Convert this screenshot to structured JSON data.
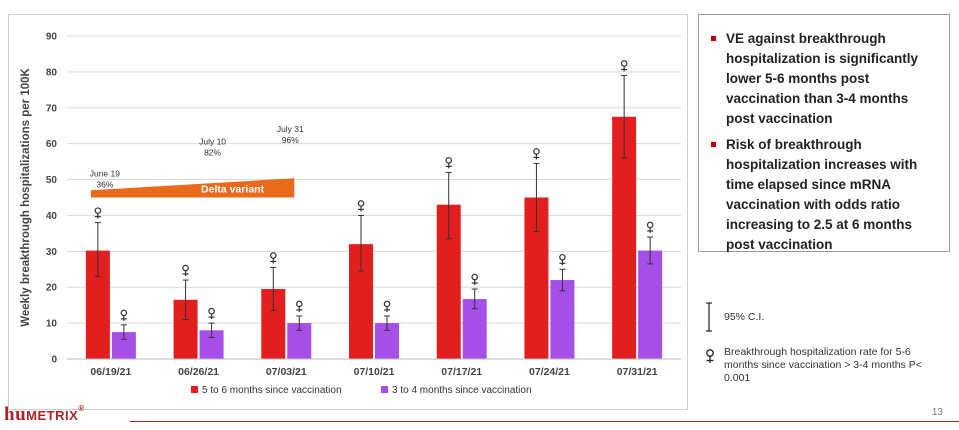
{
  "chart_data": {
    "type": "bar",
    "ylabel": "Weekly breakthrough hospitalizations per 100K",
    "xlabel": "",
    "ylim": [
      0,
      90
    ],
    "yticks": [
      0,
      10,
      20,
      30,
      40,
      50,
      60,
      70,
      80,
      90
    ],
    "grid": true,
    "legend_position": "bottom",
    "categories": [
      "06/19/21",
      "06/26/21",
      "07/03/21",
      "07/10/21",
      "07/17/21",
      "07/24/21",
      "07/31/21"
    ],
    "series": [
      {
        "name": "5 to 6 months since vaccination",
        "color": "#e31e1e",
        "values": [
          30.2,
          16.5,
          19.5,
          32.0,
          43.0,
          45.0,
          67.5
        ],
        "ci_low": [
          23.0,
          11.0,
          13.5,
          24.5,
          33.5,
          35.5,
          56.0
        ],
        "ci_high": [
          38.0,
          22.0,
          25.5,
          40.0,
          52.0,
          54.5,
          79.0
        ]
      },
      {
        "name": "3 to 4 months since vaccination",
        "color": "#a64ee8",
        "values": [
          7.5,
          8.0,
          10.0,
          10.0,
          16.7,
          22.0,
          30.2
        ],
        "ci_low": [
          5.5,
          6.0,
          8.0,
          8.0,
          14.0,
          19.0,
          26.5
        ],
        "ci_high": [
          9.5,
          10.0,
          12.0,
          12.0,
          19.5,
          25.0,
          34.0
        ]
      }
    ],
    "significance_marker_categories": [
      "06/19/21",
      "06/26/21",
      "07/03/21",
      "07/10/21",
      "07/17/21",
      "07/24/21",
      "07/31/21"
    ],
    "delta_variant": {
      "label": "Delta variant",
      "color": "#e86a1a",
      "points": [
        {
          "date": "June 19",
          "pct": "36%",
          "level": 36
        },
        {
          "date": "July 10",
          "pct": "82%",
          "level": 82
        },
        {
          "date": "July 31",
          "pct": "96%",
          "level": 96
        }
      ]
    }
  },
  "bullets": [
    "VE against breakthrough hospitalization is significantly lower 5-6 months post vaccination than 3-4 months post vaccination",
    "Risk of breakthrough hospitalization increases with time elapsed since mRNA vaccination with odds ratio increasing to 2.5 at 6 months post vaccination"
  ],
  "notes": {
    "ci_label": "95% C.I.",
    "significance_label": "Breakthrough hospitalization rate for 5-6 months since vaccination > 3-4 months P< 0.001"
  },
  "logo": {
    "part1": "hu",
    "part2": "METRIX",
    "mark": "®"
  },
  "page_number": "13",
  "colors": {
    "accent": "#b22222",
    "bullet_marker": "#c00000"
  }
}
